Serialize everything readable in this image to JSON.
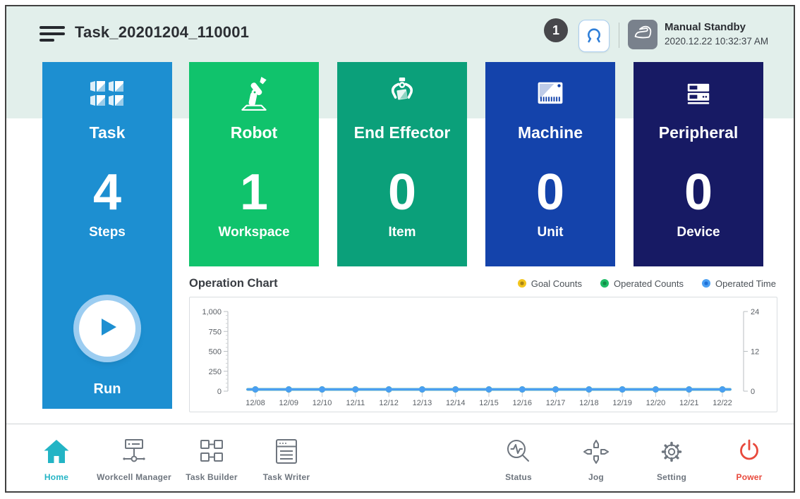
{
  "header": {
    "title": "Task_20201204_110001",
    "badge_count": "1",
    "gripper_button": {
      "icon": "gripper-icon",
      "icon_color": "#2e7ed8",
      "border_color": "#a9cdf0"
    },
    "mode": {
      "icon": "hand-icon",
      "chip_color": "#79818c",
      "label": "Manual Standby",
      "timestamp": "2020.12.22 10:32:37 AM"
    }
  },
  "cards": [
    {
      "label": "Task",
      "value": "4",
      "unit": "Steps",
      "color": "#1d8fd1",
      "icon": "task-icon",
      "run_label": "Run"
    },
    {
      "label": "Robot",
      "value": "1",
      "unit": "Workspace",
      "color": "#10c36c",
      "icon": "robot-icon"
    },
    {
      "label": "End Effector",
      "value": "0",
      "unit": "Item",
      "color": "#0ba07a",
      "icon": "end-effector-icon"
    },
    {
      "label": "Machine",
      "value": "0",
      "unit": "Unit",
      "color": "#1443ab",
      "icon": "machine-icon"
    },
    {
      "label": "Peripheral",
      "value": "0",
      "unit": "Device",
      "color": "#171a64",
      "icon": "peripheral-icon"
    }
  ],
  "chart_data": {
    "type": "line",
    "title": "Operation Chart",
    "x": [
      "12/08",
      "12/09",
      "12/10",
      "12/11",
      "12/12",
      "12/13",
      "12/14",
      "12/15",
      "12/16",
      "12/17",
      "12/18",
      "12/19",
      "12/20",
      "12/21",
      "12/22"
    ],
    "series": [
      {
        "name": "Goal Counts",
        "color": "#f3c51d",
        "center_color": "#a98413",
        "axis": "left",
        "values": [
          0,
          0,
          0,
          0,
          0,
          0,
          0,
          0,
          0,
          0,
          0,
          0,
          0,
          0,
          0
        ]
      },
      {
        "name": "Operated Counts",
        "color": "#1fbc66",
        "center_color": "#128a47",
        "axis": "left",
        "values": [
          0,
          0,
          0,
          0,
          0,
          0,
          0,
          0,
          0,
          0,
          0,
          0,
          0,
          0,
          0
        ]
      },
      {
        "name": "Operated Time",
        "color": "#4a9ff2",
        "center_color": "#1d6fd8",
        "axis": "right",
        "values": [
          0,
          0,
          0,
          0,
          0,
          0,
          0,
          0,
          0,
          0,
          0,
          0,
          0,
          0,
          0
        ]
      }
    ],
    "left_axis": {
      "ticks": [
        "1,000",
        "750",
        "500",
        "250",
        "0"
      ],
      "range": [
        0,
        1000
      ]
    },
    "right_axis": {
      "ticks": [
        "24",
        "12",
        "0"
      ],
      "range": [
        0,
        24
      ]
    },
    "legend_position": "top-right",
    "grid": false
  },
  "nav": {
    "items": [
      {
        "label": "Home",
        "icon": "home-icon",
        "active": true,
        "color": "#23b4c5"
      },
      {
        "label": "Workcell Manager",
        "icon": "workcell-manager-icon",
        "active": false
      },
      {
        "label": "Task Builder",
        "icon": "task-builder-icon",
        "active": false
      },
      {
        "label": "Task Writer",
        "icon": "task-writer-icon",
        "active": false
      },
      {
        "label": "Status",
        "icon": "status-icon",
        "active": false
      },
      {
        "label": "Jog",
        "icon": "jog-icon",
        "active": false
      },
      {
        "label": "Setting",
        "icon": "setting-icon",
        "active": false
      },
      {
        "label": "Power",
        "icon": "power-icon",
        "active": false,
        "color": "#e8493c"
      }
    ]
  }
}
